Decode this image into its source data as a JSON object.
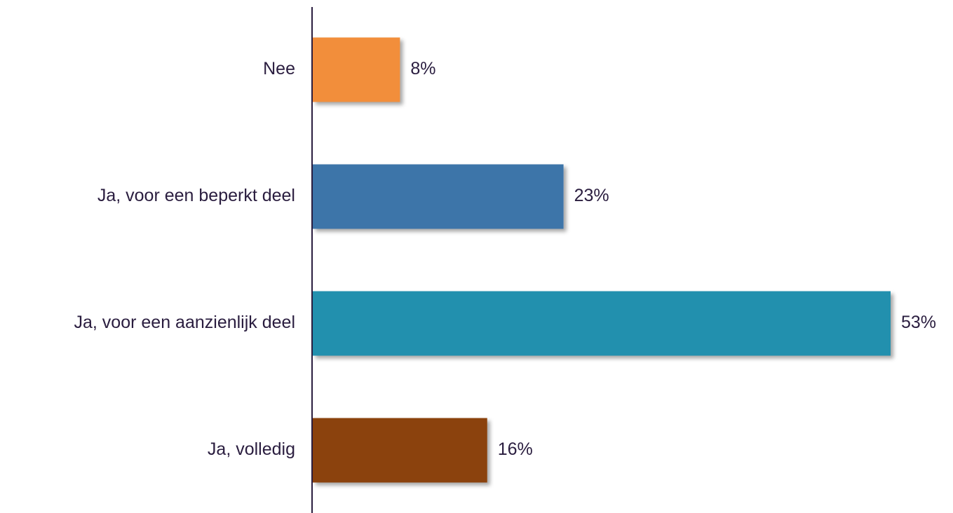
{
  "chart_data": {
    "type": "bar",
    "orientation": "horizontal",
    "categories": [
      "Nee",
      "Ja, voor een beperkt deel",
      "Ja, voor een aanzienlijk deel",
      "Ja, volledig"
    ],
    "values": [
      8,
      23,
      53,
      16
    ],
    "value_labels": [
      "8%",
      "23%",
      "53%",
      "16%"
    ],
    "bar_colors": [
      "#f28e3a",
      "#3d74a9",
      "#2090ae",
      "#8b4307"
    ],
    "axis_color": "#2a1d3f",
    "text_color": "#2a1d3f",
    "xlim": [
      0,
      53
    ],
    "grid": false,
    "legend": "none",
    "title": "",
    "xlabel": "",
    "ylabel": ""
  }
}
